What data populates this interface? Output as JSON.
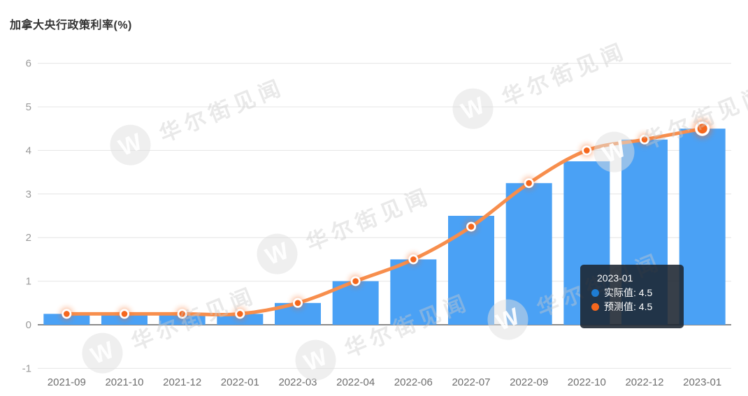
{
  "header": {
    "title": "加拿大央行政策利率(%)"
  },
  "watermark": {
    "text": "华尔街见闻",
    "logo_letter": "W"
  },
  "tooltip": {
    "title": "2023-01",
    "rows": [
      {
        "series": "实际值",
        "text": "实际值: 4.5",
        "color": "#1e7cd2"
      },
      {
        "series": "预测值",
        "text": "预测值: 4.5",
        "color": "#f5671d"
      }
    ]
  },
  "chart_data": {
    "type": "bar",
    "title": "加拿大央行政策利率(%)",
    "categories": [
      "2021-09",
      "2021-10",
      "2021-12",
      "2022-01",
      "2022-03",
      "2022-04",
      "2022-06",
      "2022-07",
      "2022-09",
      "2022-10",
      "2022-12",
      "2023-01"
    ],
    "series": [
      {
        "name": "实际值",
        "type": "bar",
        "color": "#4aa1f5",
        "values": [
          0.25,
          0.25,
          0.25,
          0.25,
          0.5,
          1.0,
          1.5,
          2.5,
          3.25,
          3.75,
          4.25,
          4.5
        ]
      },
      {
        "name": "预测值",
        "type": "line",
        "color": "#f78e4d",
        "marker_color": "#f5671d",
        "smooth": true,
        "values": [
          0.25,
          0.25,
          0.25,
          0.25,
          0.5,
          1.0,
          1.5,
          2.25,
          3.25,
          4.0,
          4.25,
          4.5
        ]
      }
    ],
    "xlabel": "",
    "ylabel": "",
    "ylim": [
      -1,
      6
    ],
    "yticks": [
      6,
      5,
      4,
      3,
      2,
      1,
      0,
      -1
    ],
    "grid": true,
    "legend": "none",
    "active_index": 11,
    "colors": {
      "gridline": "#e4e4e4",
      "zero_axis": "#8b8b8b",
      "y_tick_label": "#9a9a9a",
      "x_tick_label": "#6e6e6e"
    }
  }
}
